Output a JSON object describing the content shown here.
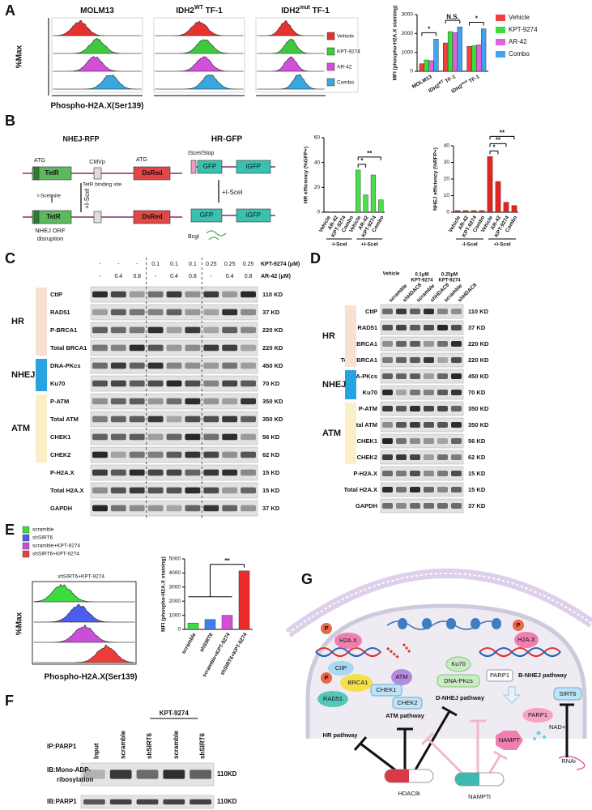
{
  "panel_labels": [
    "A",
    "B",
    "C",
    "D",
    "E",
    "F",
    "G"
  ],
  "flow_a": {
    "titles": [
      [
        "MOLM13"
      ],
      [
        "IDH2",
        "WT",
        " TF-1"
      ],
      [
        "IDH2",
        "mut",
        " TF-1"
      ]
    ],
    "ylabel": "%Max",
    "xlabel": "Phospho-H2A.X(Ser139)",
    "legend": [
      {
        "name": "Vehicle",
        "color": "#e8302c"
      },
      {
        "name": "KPT-9274",
        "color": "#3fc93f"
      },
      {
        "name": "AR-42",
        "color": "#d24fd8"
      },
      {
        "name": "Combo",
        "color": "#38a8dc"
      }
    ]
  },
  "chart_data": [
    {
      "type": "bar",
      "ylabel": "MFI (phospho-H2A.X staining)",
      "categories": [
        [
          "MOLM13"
        ],
        [
          "IDH2",
          "WT",
          " TF-1"
        ],
        [
          "IDH2",
          "mut",
          " TF-1"
        ]
      ],
      "series": [
        {
          "name": "Vehicle",
          "color": "#f0413c",
          "values": [
            400,
            1500,
            1320
          ]
        },
        {
          "name": "KPT-9274",
          "color": "#3ddc3d",
          "values": [
            600,
            2100,
            1350
          ]
        },
        {
          "name": "AR-42",
          "color": "#e060e0",
          "values": [
            560,
            2050,
            1400
          ]
        },
        {
          "name": "Combo",
          "color": "#3fa5f0",
          "values": [
            1700,
            2350,
            2250
          ]
        }
      ],
      "ylim": [
        0,
        3000
      ],
      "yticks": [
        0,
        1000,
        2000,
        3000
      ],
      "annotations": [
        "*",
        "N.S.",
        "*"
      ]
    },
    {
      "type": "bar",
      "ylabel": "HR efficiency (%GFP+)",
      "categories": [
        "Vehicle",
        "AR-42",
        "KPT-9274",
        "Combo",
        "Vehicle",
        "AR-42",
        "KPT-9274",
        "Combo"
      ],
      "groups": [
        "-I-SceI",
        "+I-SceI"
      ],
      "values": [
        0.5,
        0.5,
        0.5,
        0.5,
        34,
        14,
        30,
        10
      ],
      "color": "#4ade4a",
      "ylim": [
        0,
        60
      ],
      "yticks": [
        0,
        20,
        40,
        60
      ],
      "annotations": [
        "*",
        "**"
      ]
    },
    {
      "type": "bar",
      "ylabel": "NHEJ efficiency (%RFP+)",
      "categories": [
        "Vehicle",
        "AR-42",
        "KPT-9274",
        "Combo",
        "Vehicle",
        "AR-42",
        "KPT-9274",
        "Combo"
      ],
      "groups": [
        "-I-SceI",
        "+I-SceI"
      ],
      "values": [
        1,
        1,
        1,
        1,
        33.5,
        18.5,
        6,
        4
      ],
      "color": "#e8231f",
      "ylim": [
        0,
        40
      ],
      "yticks": [
        0,
        10,
        20,
        30,
        40
      ],
      "annotations": [
        "*",
        "**",
        "**"
      ]
    },
    {
      "type": "bar",
      "ylabel": "MFI (phospho-H2A.X staining)",
      "categories": [
        "scramble",
        "shSIRT6",
        "scramble+KPT-9274",
        "shSIRT6+KPT-9274"
      ],
      "values": [
        450,
        700,
        1000,
        4150
      ],
      "colors": [
        "#3ddc3d",
        "#3f7ff0",
        "#d24fd8",
        "#ee2b2b"
      ],
      "ylim": [
        0,
        5000
      ],
      "yticks": [
        0,
        1000,
        2000,
        3000,
        4000,
        5000
      ],
      "annotations": [
        "**"
      ]
    }
  ],
  "diagram_b": {
    "labels": [
      "NHEJ-RFP",
      "HR-GFP",
      "ATG",
      "CMVp",
      "ATG",
      "TetR",
      "DsRed",
      "I-SceI site",
      "TetR binding site",
      "+I-SceI",
      "TetR",
      "DsRed",
      "NHEJ ORF",
      "disruption",
      "ISceI/Stop",
      "GFP",
      "iGFP",
      "+I-SceI",
      "GFP",
      "iGFP",
      "BcgI"
    ]
  },
  "blot_c": {
    "treatments": [
      {
        "label": "KPT-9274 (μM)",
        "values": [
          "-",
          "-",
          "-",
          "0.1",
          "0.1",
          "0.1",
          "0.25",
          "0.25",
          "0.25"
        ]
      },
      {
        "label": "AR-42 (μM)",
        "values": [
          "-",
          "0.4",
          "0.8",
          "-",
          "0.4",
          "0.8",
          "-",
          "0.4",
          "0.8"
        ]
      }
    ],
    "groups": [
      "HR",
      "NHEJ",
      "ATM"
    ],
    "rows": [
      {
        "protein": "CtIP",
        "size": "110 KD"
      },
      {
        "protein": "RAD51",
        "size": "37 KD"
      },
      {
        "protein": "P-BRCA1",
        "size": "220 KD"
      },
      {
        "protein": "Total BRCA1",
        "size": "220 KD"
      },
      {
        "protein": "DNA-PKcs",
        "size": "450 KD"
      },
      {
        "protein": "Ku70",
        "size": "70 KD"
      },
      {
        "protein": "P-ATM",
        "size": "350 KD"
      },
      {
        "protein": "Total ATM",
        "size": "350 KD"
      },
      {
        "protein": "CHEK1",
        "size": "56 KD"
      },
      {
        "protein": "CHEK2",
        "size": "62 KD"
      },
      {
        "protein": "P-H2A.X",
        "size": "15 KD"
      },
      {
        "protein": "Total H2A.X",
        "size": "15 KD"
      },
      {
        "protein": "GAPDH",
        "size": "37 KD"
      }
    ]
  },
  "blot_d": {
    "treatments": [
      [
        "Vehicle"
      ],
      [
        "0.1μM",
        "KPT-9274"
      ],
      [
        "0.25μM",
        "KPT-9274"
      ]
    ],
    "lanes": [
      "scramble",
      "shHDAC8",
      "scramble",
      "shHDAC8",
      "scramble",
      "shHDAC8"
    ],
    "groups": [
      "HR",
      "NHEJ",
      "ATM"
    ],
    "rows": [
      {
        "protein": "CtIP",
        "size": "110 KD"
      },
      {
        "protein": "RAD51",
        "size": "37 KD"
      },
      {
        "protein": "P-BRCA1",
        "size": "220 KD"
      },
      {
        "protein": "Total BRCA1",
        "size": "220 KD"
      },
      {
        "protein": "DNA-PKcs",
        "size": "450 KD"
      },
      {
        "protein": "Ku70",
        "size": "70 KD"
      },
      {
        "protein": "P-ATM",
        "size": "350 KD"
      },
      {
        "protein": "Total ATM",
        "size": "350 KD"
      },
      {
        "protein": "CHEK1",
        "size": "56 KD"
      },
      {
        "protein": "CHEK2",
        "size": "62 KD"
      },
      {
        "protein": "P-H2A.X",
        "size": "15 KD"
      },
      {
        "protein": "Total H2A.X",
        "size": "15 KD"
      },
      {
        "protein": "GAPDH",
        "size": "37 KD"
      }
    ]
  },
  "flow_e": {
    "legend": [
      {
        "name": "scramble",
        "color": "#3ddc3d"
      },
      {
        "name": "shSIRT6",
        "color": "#4a5ef0"
      },
      {
        "name": "scramble+KPT-9274",
        "color": "#c94fd8"
      },
      {
        "name": "shSIRT6+KPT-9274",
        "color": "#ee3b3b"
      }
    ],
    "title": "shSIRT6+KPT-9274",
    "ylabel": "%Max",
    "xlabel": "Phospho-H2A.X(Ser139)"
  },
  "blot_f": {
    "ip": "IP:PARP1",
    "treatment": "KPT-9274",
    "lanes": [
      "Input",
      "scramble",
      "shSIRT6",
      "scramble",
      "shSIRT6"
    ],
    "rows": [
      {
        "label": [
          "IB:Mono-ADP-",
          "ribosylation"
        ],
        "size": "110KD"
      },
      {
        "label": [
          "IB:PARP1"
        ],
        "size": "110KD"
      }
    ]
  },
  "model_g": {
    "labels": [
      "P",
      "H2A.X",
      "P",
      "H2A.X",
      "CtIP",
      "P",
      "BRCA1",
      "RAD51",
      "ATM",
      "CHEK1",
      "CHEK2",
      "Ku70",
      "DNA-PKcs",
      "PARP1",
      "B-NHEJ pathway",
      "D-NHEJ pathway",
      "ATM pathway",
      "HR pathway",
      "PARP1",
      "NAMPT",
      "NAD+",
      "SIRT6",
      "RNAi",
      "HDAC8i",
      "NAMPTi"
    ]
  }
}
